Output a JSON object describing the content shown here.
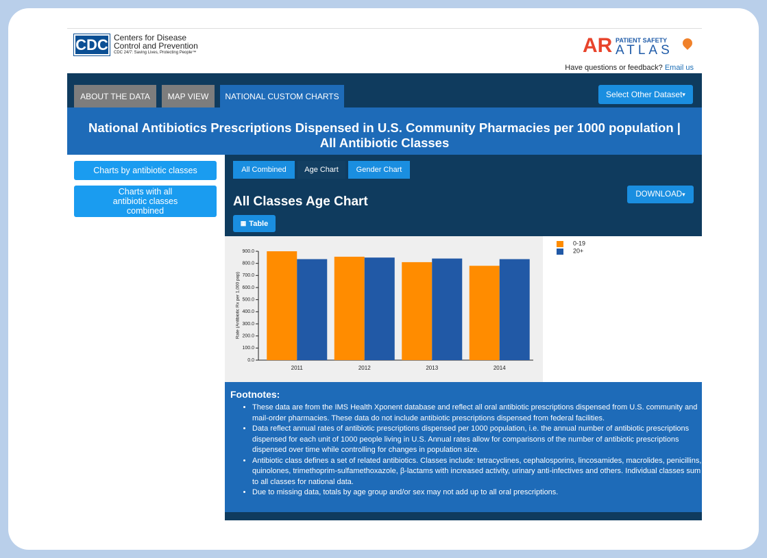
{
  "header": {
    "logo": "CDC",
    "org_line1": "Centers for Disease",
    "org_line2": "Control and Prevention",
    "tagline": "CDC 24/7: Saving Lives, Protecting People™",
    "atlas_ar": "AR",
    "atlas_top": "PATIENT SAFETY",
    "atlas_bottom": "ATLAS",
    "feedback": "Have questions or feedback?",
    "email": "Email us"
  },
  "nav": {
    "tabs": [
      "ABOUT THE DATA",
      "MAP VIEW",
      "NATIONAL CUSTOM CHARTS"
    ],
    "dataset_button": "Select Other Dataset"
  },
  "page_title": [
    "National Antibiotics Prescriptions Dispensed in U.S. Community Pharmacies per 1000 population |",
    "All Antibiotic Classes"
  ],
  "sidebar": [
    "Charts by antibiotic classes",
    "Charts with all antibiotic classes combined"
  ],
  "chart_tabs": [
    "All Combined",
    "Age Chart",
    "Gender Chart"
  ],
  "download": "DOWNLOAD",
  "table_button": "Table",
  "chart_data": {
    "type": "bar",
    "title": "All Classes Age Chart",
    "y_label": "Rate (Antibiotic Rx per 1,000 pop)",
    "categories": [
      "2011",
      "2012",
      "2013",
      "2014"
    ],
    "series": [
      {
        "name": "0-19",
        "color": "#ff8c00",
        "values": [
          900,
          855,
          810,
          780
        ]
      },
      {
        "name": "20+",
        "color": "#2159a6",
        "values": [
          835,
          848,
          840,
          835
        ]
      }
    ],
    "ylim": [
      0,
      900
    ],
    "yticks": [
      {
        "value": 0,
        "label": "0.0"
      },
      {
        "value": 100,
        "label": "100.0"
      },
      {
        "value": 200,
        "label": "200.0"
      },
      {
        "value": 300,
        "label": "300.0"
      },
      {
        "value": 400,
        "label": "400.0"
      },
      {
        "value": 500,
        "label": "500.0"
      },
      {
        "value": 600,
        "label": "600.0"
      },
      {
        "value": 700,
        "label": "700.0"
      },
      {
        "value": 800,
        "label": "800.0"
      },
      {
        "value": 900,
        "label": "900.0"
      }
    ],
    "legend": "upper-right",
    "grid": false
  },
  "footnotes": {
    "heading": "Footnotes:",
    "items": [
      "These data are from the IMS Health Xponent database and reflect all oral antibiotic prescriptions dispensed from U.S. community and mail-order pharmacies. These data do not include antibiotic prescriptions dispensed from federal facilities.",
      "Data reflect annual rates of antibiotic prescriptions dispensed per 1000 population, i.e. the annual number of antibiotic prescriptions dispensed for each unit of 1000 people living in U.S. Annual rates allow for comparisons of the number of antibiotic prescriptions dispensed over time while controlling for changes in population size.",
      "Antibiotic class defines a set of related antibiotics. Classes include: tetracyclines, cephalosporins, lincosamides, macrolides, penicillins, quinolones, trimethoprim-sulfamethoxazole, β-lactams with increased activity, urinary anti-infectives and others. Individual classes sum to all classes for national data.",
      "Due to missing data, totals by age group and/or sex may not add up to all oral prescriptions."
    ]
  }
}
